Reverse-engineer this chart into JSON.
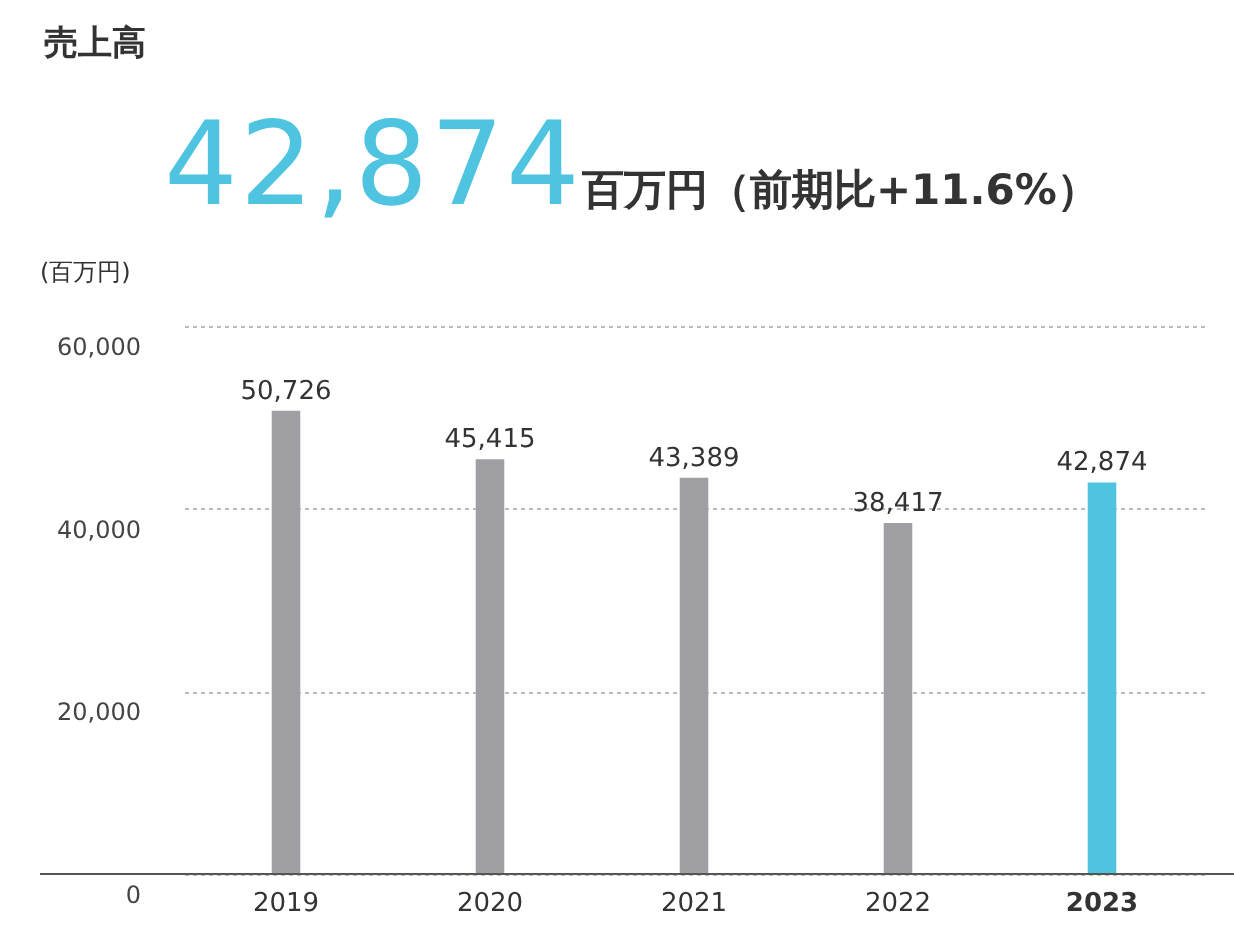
{
  "chart_data": {
    "type": "bar",
    "title": "売上高",
    "annotations": [
      "42,874",
      "百万円（前期比+11.6%）"
    ],
    "ylabel": "(百万円)",
    "categories": [
      "2019",
      "2020",
      "2021",
      "2022",
      "2023"
    ],
    "values": [
      50726,
      45415,
      43389,
      38417,
      42874
    ],
    "colors": [
      "#a0a0a4",
      "#a0a0a4",
      "#a0a0a4",
      "#a0a0a4",
      "#4ec4e0"
    ],
    "value_labels": [
      "50,726",
      "45,415",
      "43,389",
      "38,417",
      "42,874"
    ],
    "ylim": [
      0,
      60000
    ],
    "yticks": [
      0,
      {
        "value": 20000,
        "label": "20,000"
      },
      {
        "value": 40000,
        "label": "40,000"
      },
      {
        "value": 60000,
        "label": "60,000"
      }
    ],
    "grid": "y"
  }
}
